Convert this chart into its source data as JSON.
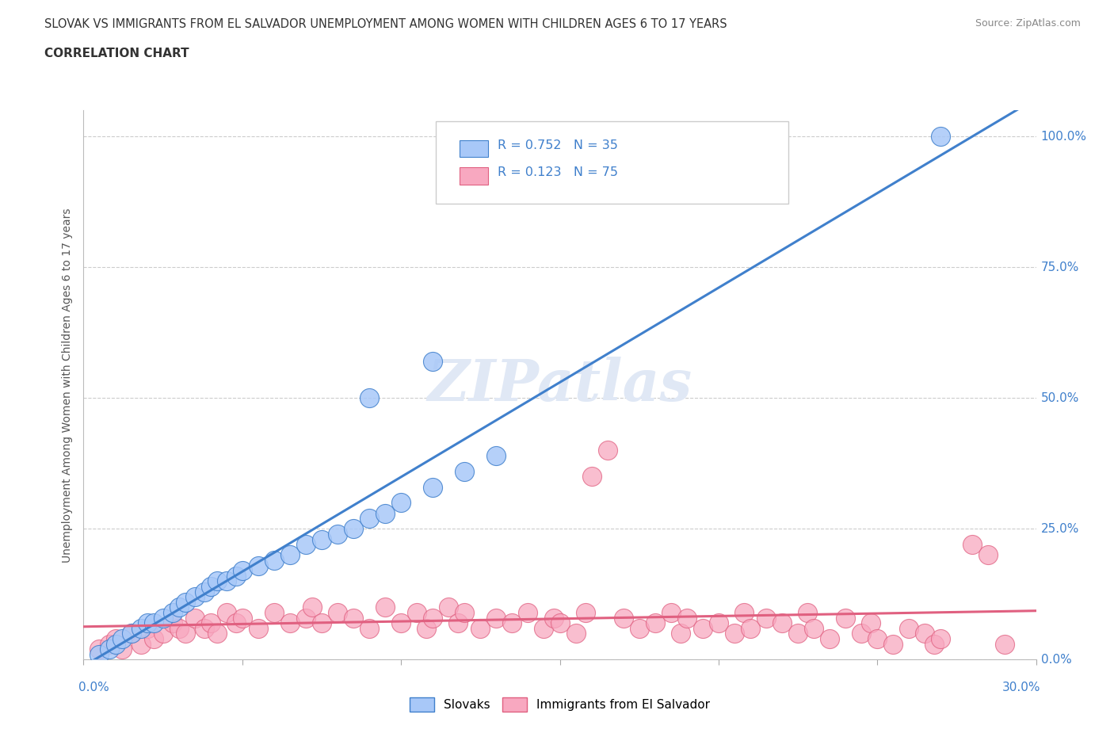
{
  "title_line1": "SLOVAK VS IMMIGRANTS FROM EL SALVADOR UNEMPLOYMENT AMONG WOMEN WITH CHILDREN AGES 6 TO 17 YEARS",
  "title_line2": "CORRELATION CHART",
  "source_text": "Source: ZipAtlas.com",
  "ylabel_axis": "Unemployment Among Women with Children Ages 6 to 17 years",
  "slovak_color": "#a8c8f8",
  "salvador_color": "#f8a8c0",
  "slovak_line_color": "#4080cc",
  "salvador_line_color": "#e06080",
  "background_color": "#ffffff",
  "grid_color": "#cccccc",
  "axis_label_color": "#4080cc",
  "xmin": 0.0,
  "xmax": 0.3,
  "ymin": 0.0,
  "ymax": 1.05,
  "slovak_scatter": [
    [
      0.005,
      0.01
    ],
    [
      0.008,
      0.02
    ],
    [
      0.01,
      0.03
    ],
    [
      0.012,
      0.04
    ],
    [
      0.015,
      0.05
    ],
    [
      0.018,
      0.06
    ],
    [
      0.02,
      0.07
    ],
    [
      0.022,
      0.07
    ],
    [
      0.025,
      0.08
    ],
    [
      0.028,
      0.09
    ],
    [
      0.03,
      0.1
    ],
    [
      0.032,
      0.11
    ],
    [
      0.035,
      0.12
    ],
    [
      0.038,
      0.13
    ],
    [
      0.04,
      0.14
    ],
    [
      0.042,
      0.15
    ],
    [
      0.045,
      0.15
    ],
    [
      0.048,
      0.16
    ],
    [
      0.05,
      0.17
    ],
    [
      0.055,
      0.18
    ],
    [
      0.06,
      0.19
    ],
    [
      0.065,
      0.2
    ],
    [
      0.07,
      0.22
    ],
    [
      0.075,
      0.23
    ],
    [
      0.08,
      0.24
    ],
    [
      0.085,
      0.25
    ],
    [
      0.09,
      0.27
    ],
    [
      0.095,
      0.28
    ],
    [
      0.1,
      0.3
    ],
    [
      0.11,
      0.33
    ],
    [
      0.12,
      0.36
    ],
    [
      0.13,
      0.39
    ],
    [
      0.09,
      0.5
    ],
    [
      0.11,
      0.57
    ],
    [
      0.27,
      1.0
    ]
  ],
  "salvador_scatter": [
    [
      0.005,
      0.02
    ],
    [
      0.008,
      0.03
    ],
    [
      0.01,
      0.04
    ],
    [
      0.012,
      0.02
    ],
    [
      0.015,
      0.05
    ],
    [
      0.018,
      0.03
    ],
    [
      0.02,
      0.06
    ],
    [
      0.022,
      0.04
    ],
    [
      0.025,
      0.05
    ],
    [
      0.028,
      0.07
    ],
    [
      0.03,
      0.06
    ],
    [
      0.032,
      0.05
    ],
    [
      0.035,
      0.08
    ],
    [
      0.038,
      0.06
    ],
    [
      0.04,
      0.07
    ],
    [
      0.042,
      0.05
    ],
    [
      0.045,
      0.09
    ],
    [
      0.048,
      0.07
    ],
    [
      0.05,
      0.08
    ],
    [
      0.055,
      0.06
    ],
    [
      0.06,
      0.09
    ],
    [
      0.065,
      0.07
    ],
    [
      0.07,
      0.08
    ],
    [
      0.072,
      0.1
    ],
    [
      0.075,
      0.07
    ],
    [
      0.08,
      0.09
    ],
    [
      0.085,
      0.08
    ],
    [
      0.09,
      0.06
    ],
    [
      0.095,
      0.1
    ],
    [
      0.1,
      0.07
    ],
    [
      0.105,
      0.09
    ],
    [
      0.108,
      0.06
    ],
    [
      0.11,
      0.08
    ],
    [
      0.115,
      0.1
    ],
    [
      0.118,
      0.07
    ],
    [
      0.12,
      0.09
    ],
    [
      0.125,
      0.06
    ],
    [
      0.13,
      0.08
    ],
    [
      0.135,
      0.07
    ],
    [
      0.14,
      0.09
    ],
    [
      0.145,
      0.06
    ],
    [
      0.148,
      0.08
    ],
    [
      0.15,
      0.07
    ],
    [
      0.155,
      0.05
    ],
    [
      0.158,
      0.09
    ],
    [
      0.16,
      0.35
    ],
    [
      0.165,
      0.4
    ],
    [
      0.17,
      0.08
    ],
    [
      0.175,
      0.06
    ],
    [
      0.18,
      0.07
    ],
    [
      0.185,
      0.09
    ],
    [
      0.188,
      0.05
    ],
    [
      0.19,
      0.08
    ],
    [
      0.195,
      0.06
    ],
    [
      0.2,
      0.07
    ],
    [
      0.205,
      0.05
    ],
    [
      0.208,
      0.09
    ],
    [
      0.21,
      0.06
    ],
    [
      0.215,
      0.08
    ],
    [
      0.22,
      0.07
    ],
    [
      0.225,
      0.05
    ],
    [
      0.228,
      0.09
    ],
    [
      0.23,
      0.06
    ],
    [
      0.235,
      0.04
    ],
    [
      0.24,
      0.08
    ],
    [
      0.245,
      0.05
    ],
    [
      0.248,
      0.07
    ],
    [
      0.25,
      0.04
    ],
    [
      0.255,
      0.03
    ],
    [
      0.26,
      0.06
    ],
    [
      0.265,
      0.05
    ],
    [
      0.268,
      0.03
    ],
    [
      0.27,
      0.04
    ],
    [
      0.28,
      0.22
    ],
    [
      0.285,
      0.2
    ],
    [
      0.29,
      0.03
    ]
  ]
}
